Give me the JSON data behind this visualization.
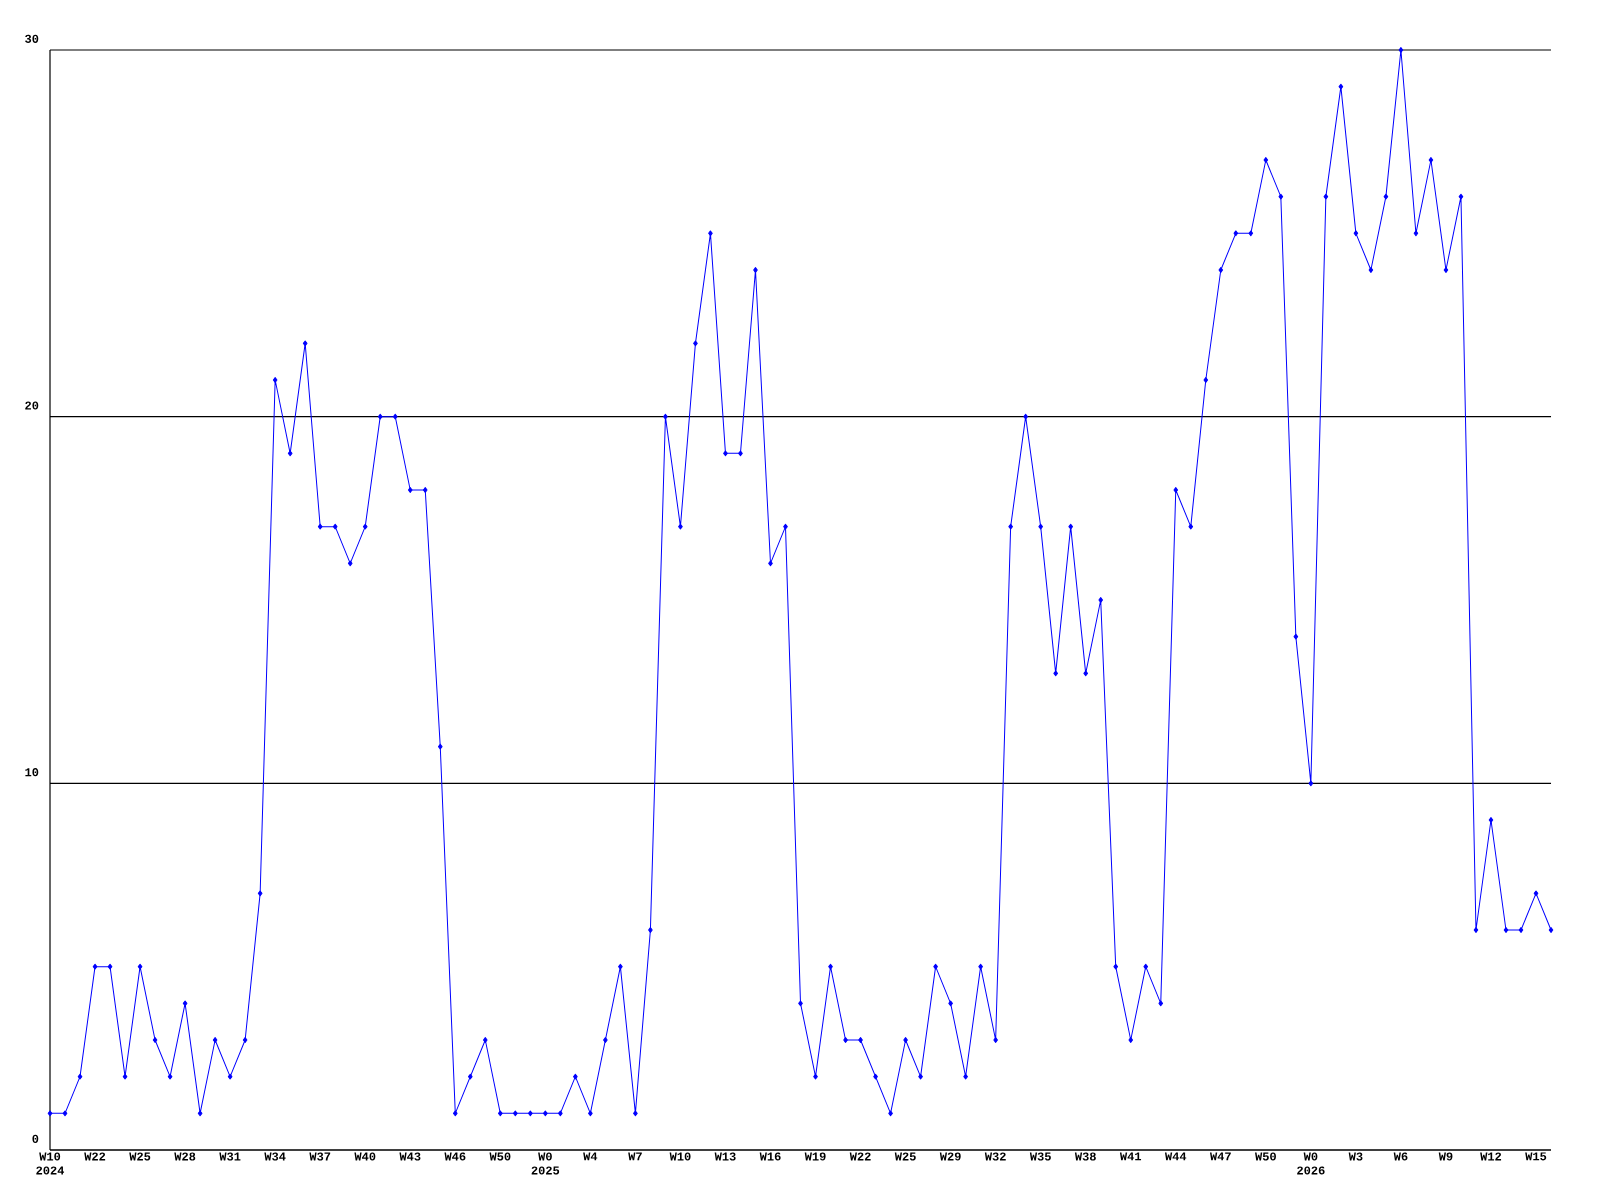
{
  "chart_data": {
    "type": "line",
    "categories": [
      "W10 2024",
      null,
      null,
      "W22",
      null,
      null,
      "W25",
      null,
      null,
      "W28",
      null,
      null,
      "W31",
      null,
      null,
      "W34",
      null,
      null,
      "W37",
      null,
      null,
      "W40",
      null,
      null,
      "W43",
      null,
      null,
      "W46",
      null,
      null,
      "W50",
      null,
      null,
      "W0 2025",
      null,
      null,
      "W4",
      null,
      null,
      "W7",
      null,
      null,
      "W10",
      null,
      null,
      "W13",
      null,
      null,
      "W16",
      null,
      null,
      "W19",
      null,
      null,
      "W22",
      null,
      null,
      "W25",
      null,
      null,
      "W29",
      null,
      null,
      "W32",
      null,
      null,
      "W35",
      null,
      null,
      "W38",
      null,
      null,
      "W41",
      null,
      null,
      "W44",
      null,
      null,
      "W47",
      null,
      null,
      "W50",
      null,
      null,
      "W0 2026",
      null,
      null,
      "W3",
      null,
      null,
      "W6",
      null,
      null,
      "W9",
      null,
      null,
      "W12",
      null,
      null,
      "W15",
      null
    ],
    "values": [
      1,
      1,
      2,
      5,
      5,
      2,
      5,
      3,
      2,
      4,
      1,
      3,
      2,
      3,
      7,
      21,
      19,
      22,
      17,
      17,
      16,
      17,
      20,
      20,
      18,
      18,
      11,
      1,
      2,
      3,
      1,
      1,
      1,
      1,
      1,
      2,
      1,
      3,
      5,
      1,
      6,
      20,
      17,
      22,
      25,
      19,
      19,
      24,
      16,
      17,
      4,
      2,
      5,
      3,
      3,
      2,
      1,
      3,
      2,
      5,
      4,
      2,
      5,
      3,
      17,
      20,
      17,
      13,
      17,
      13,
      15,
      5,
      3,
      5,
      4,
      18,
      17,
      21,
      24,
      25,
      25,
      27,
      26,
      14,
      10,
      26,
      29,
      25,
      24,
      26,
      30,
      25,
      27,
      24,
      26,
      6,
      9,
      6,
      6,
      7,
      6
    ],
    "color": "#0000ff",
    "ylim": [
      0,
      30
    ],
    "yticks": [
      0,
      10,
      20,
      30
    ],
    "grid": "y",
    "marker": "diamond",
    "line_style": "solid"
  }
}
